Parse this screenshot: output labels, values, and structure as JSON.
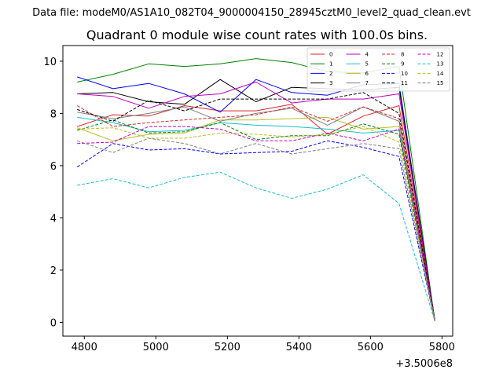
{
  "chart_data": {
    "type": "line",
    "suptitle": "Data file: modeM0/AS1A10_082T04_9000004150_28945cztM0_level2_quad_clean.evt",
    "title": "Quadrant 0 module wise count rates with 100.0s bins.",
    "xlabel": "",
    "ylabel": "",
    "x_offset_label": "+3.5006e8",
    "xlim": [
      4740,
      5830
    ],
    "ylim": [
      -0.53,
      10.6
    ],
    "xticks": [
      4800,
      5000,
      5200,
      5400,
      5600,
      5800
    ],
    "yticks": [
      0,
      2,
      4,
      6,
      8,
      10
    ],
    "x": [
      4780,
      4880,
      4980,
      5080,
      5180,
      5280,
      5380,
      5480,
      5580,
      5680,
      5780
    ],
    "legend_position": "top-right",
    "series": [
      {
        "name": "0",
        "color": "#d62728",
        "dash": "solid",
        "values": [
          7.5,
          7.95,
          7.9,
          8.3,
          8.1,
          8.1,
          8.35,
          7.2,
          7.9,
          8.3,
          0.1
        ]
      },
      {
        "name": "1",
        "color": "#008000",
        "dash": "solid",
        "values": [
          9.2,
          9.5,
          9.9,
          9.8,
          9.9,
          10.1,
          9.95,
          9.6,
          9.55,
          9.8,
          0.05
        ]
      },
      {
        "name": "2",
        "color": "#0000ff",
        "dash": "solid",
        "values": [
          9.4,
          8.95,
          9.15,
          8.75,
          8.05,
          9.3,
          8.8,
          8.7,
          9.1,
          9.15,
          0.05
        ]
      },
      {
        "name": "3",
        "color": "#000000",
        "dash": "solid",
        "values": [
          8.75,
          8.8,
          8.45,
          8.35,
          9.3,
          8.45,
          9.0,
          8.95,
          8.9,
          9.0,
          0.1
        ]
      },
      {
        "name": "4",
        "color": "#bf00bf",
        "dash": "solid",
        "values": [
          8.75,
          8.65,
          8.2,
          8.65,
          8.75,
          9.2,
          8.4,
          8.55,
          8.55,
          8.75,
          0.05
        ]
      },
      {
        "name": "5",
        "color": "#17becf",
        "dash": "solid",
        "values": [
          7.85,
          7.65,
          7.3,
          7.35,
          7.65,
          7.55,
          7.5,
          7.4,
          7.25,
          7.35,
          0.05
        ]
      },
      {
        "name": "6",
        "color": "#bcbd22",
        "dash": "solid",
        "values": [
          7.45,
          6.95,
          7.2,
          7.25,
          7.75,
          7.75,
          7.8,
          7.85,
          7.4,
          7.5,
          0.05
        ]
      },
      {
        "name": "7",
        "color": "#7f7f7f",
        "dash": "solid",
        "values": [
          8.05,
          7.8,
          8.0,
          8.25,
          7.7,
          8.0,
          8.2,
          7.55,
          8.25,
          7.7,
          0.05
        ]
      },
      {
        "name": "8",
        "color": "#d62728",
        "dash": "dashed",
        "values": [
          8.3,
          7.5,
          7.65,
          7.75,
          7.85,
          7.95,
          8.25,
          7.7,
          8.25,
          7.8,
          0.05
        ]
      },
      {
        "name": "9",
        "color": "#008000",
        "dash": "dashed",
        "values": [
          7.35,
          7.75,
          7.25,
          7.3,
          7.65,
          7.0,
          7.15,
          7.15,
          7.6,
          7.2,
          0.05
        ]
      },
      {
        "name": "10",
        "color": "#0000ff",
        "dash": "dashed",
        "values": [
          5.95,
          6.85,
          6.6,
          6.65,
          6.45,
          6.5,
          6.55,
          6.95,
          6.7,
          6.35,
          0.05
        ]
      },
      {
        "name": "11",
        "color": "#000000",
        "dash": "dashed",
        "values": [
          8.15,
          7.7,
          8.5,
          8.1,
          8.55,
          8.55,
          8.55,
          8.55,
          8.8,
          8.0,
          0.05
        ]
      },
      {
        "name": "12",
        "color": "#bf00bf",
        "dash": "dashed",
        "values": [
          6.85,
          6.9,
          7.5,
          7.5,
          7.4,
          6.95,
          6.95,
          7.25,
          6.95,
          7.4,
          0.05
        ]
      },
      {
        "name": "13",
        "color": "#17becf",
        "dash": "dashed",
        "values": [
          5.25,
          5.5,
          5.15,
          5.55,
          5.75,
          5.15,
          4.75,
          5.1,
          5.65,
          4.55,
          0.05
        ]
      },
      {
        "name": "14",
        "color": "#bcbd22",
        "dash": "dashed",
        "values": [
          7.4,
          7.45,
          7.05,
          7.05,
          7.25,
          7.2,
          7.1,
          7.2,
          7.5,
          6.9,
          0.05
        ]
      },
      {
        "name": "15",
        "color": "#7f7f7f",
        "dash": "dashed",
        "values": [
          6.95,
          6.5,
          7.05,
          6.85,
          6.45,
          6.85,
          6.45,
          6.65,
          6.85,
          6.65,
          0.05
        ]
      }
    ]
  }
}
